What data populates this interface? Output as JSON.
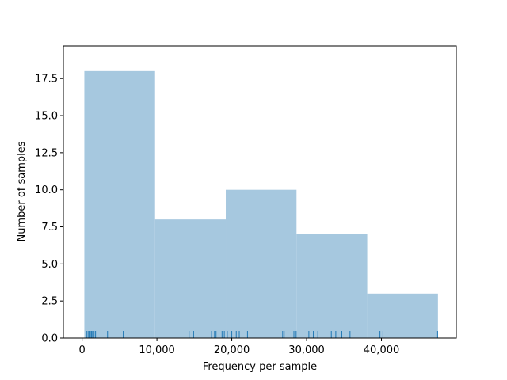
{
  "chart_data": {
    "type": "bar",
    "subtype": "histogram-with-rug",
    "xlabel": "Frequency per sample",
    "ylabel": "Number of samples",
    "xlim": [
      -2500,
      50000
    ],
    "ylim": [
      0,
      19.7
    ],
    "x_ticks": [
      0,
      10000,
      20000,
      30000,
      40000
    ],
    "x_tick_labels": [
      "0",
      "10,000",
      "20,000",
      "30,000",
      "40,000"
    ],
    "y_ticks": [
      0,
      2.5,
      5,
      7.5,
      10,
      12.5,
      15,
      17.5
    ],
    "y_tick_labels": [
      "0.0",
      "2.5",
      "5.0",
      "7.5",
      "10.0",
      "12.5",
      "15.0",
      "17.5"
    ],
    "bins": [
      {
        "start": 300,
        "end": 9750,
        "count": 18
      },
      {
        "start": 9750,
        "end": 19200,
        "count": 8
      },
      {
        "start": 19200,
        "end": 28650,
        "count": 10
      },
      {
        "start": 28650,
        "end": 38100,
        "count": 7
      },
      {
        "start": 38100,
        "end": 47550,
        "count": 3
      }
    ],
    "rug": [
      600,
      800,
      950,
      1100,
      1250,
      1400,
      1600,
      1800,
      2000,
      3400,
      5500,
      14300,
      14900,
      17300,
      17700,
      17900,
      18700,
      19000,
      19400,
      20000,
      20600,
      21000,
      22100,
      26800,
      27000,
      28300,
      28600,
      30300,
      30900,
      31500,
      33300,
      33900,
      34700,
      35800,
      39800,
      40200,
      47500
    ],
    "bar_color": "#a6c8df",
    "rug_color": "#1f77b4",
    "grid": false
  }
}
